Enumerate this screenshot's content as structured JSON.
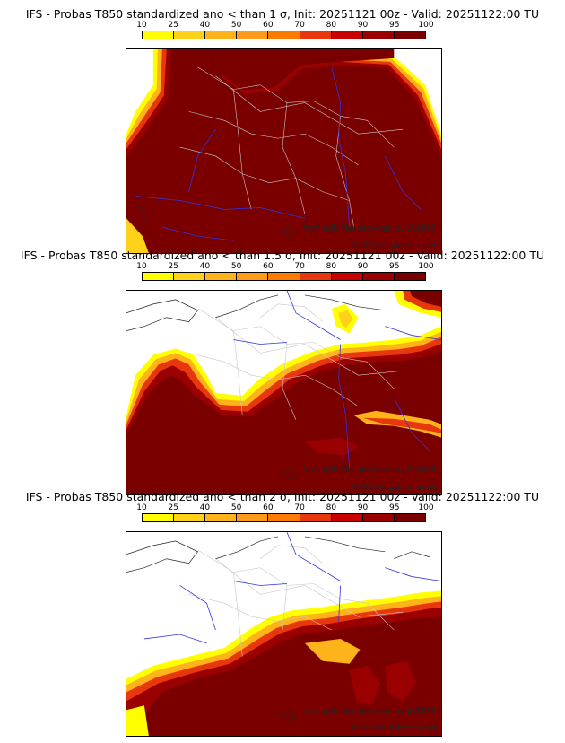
{
  "colorbar": {
    "ticks": [
      "10",
      "25",
      "40",
      "50",
      "60",
      "70",
      "80",
      "90",
      "95",
      "100"
    ],
    "colors": [
      "#ffff00",
      "#ffd21a",
      "#ffb31a",
      "#ff9a1a",
      "#ff7a00",
      "#e8360d",
      "#c80000",
      "#9a0000",
      "#7a0000"
    ]
  },
  "panels": [
    {
      "title": "IFS - Probas T850  standardized ano < than 1 σ, Init: 20251121 00z - Valid: 20251122:00 TU",
      "credit_source": "from grib files provided by ECMWF",
      "credit_copyright": "©2025 sbgsimone.net"
    },
    {
      "title": "IFS - Probas T850  standardized ano < than 1.5 σ, Init: 20251121 00z - Valid: 20251122:00 TU",
      "credit_source": "from grib files provided by ECMWF",
      "credit_copyright": "©2025 sbgsimone.net"
    },
    {
      "title": "IFS - Probas T850  standardized ano < than 2 σ, Init: 20251121 00z - Valid: 20251122:00 TU",
      "credit_source": "from grib files provided by ECMWF",
      "credit_copyright": "©2025 sbgsimone.net"
    }
  ]
}
